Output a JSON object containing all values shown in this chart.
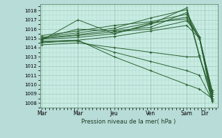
{
  "bg_color": "#b8dcd8",
  "plot_bg_color": "#c8ece4",
  "grid_color": "#98c4b0",
  "line_color": "#2a6030",
  "xlabel": "Pression niveau de la mer( hPa )",
  "ylim": [
    1007.5,
    1018.7
  ],
  "yticks": [
    1008,
    1009,
    1010,
    1011,
    1012,
    1013,
    1014,
    1015,
    1016,
    1017,
    1018
  ],
  "xtick_labels": [
    "Mar",
    "Mar",
    "Jeu",
    "Ven",
    "Sam",
    "Dir"
  ],
  "xtick_positions": [
    0.0,
    1.0,
    2.0,
    3.0,
    4.0,
    4.5
  ],
  "xlim": [
    -0.05,
    4.85
  ],
  "series": [
    [
      1014.8,
      1017.0,
      1015.5,
      1016.5,
      1018.3,
      1013.2,
      1008.2
    ],
    [
      1015.1,
      1015.6,
      1016.1,
      1017.2,
      1018.1,
      1013.0,
      1009.0
    ],
    [
      1015.3,
      1015.8,
      1016.4,
      1016.8,
      1017.6,
      1015.0,
      1008.8
    ],
    [
      1015.0,
      1016.0,
      1015.8,
      1016.2,
      1017.8,
      1015.2,
      1009.0
    ],
    [
      1014.9,
      1015.1,
      1015.5,
      1016.6,
      1017.3,
      1015.0,
      1009.2
    ],
    [
      1015.0,
      1015.3,
      1015.7,
      1016.0,
      1016.9,
      1015.1,
      1009.4
    ],
    [
      1015.0,
      1015.4,
      1015.9,
      1016.7,
      1017.1,
      1015.0,
      1008.5
    ],
    [
      1014.5,
      1014.8,
      1015.2,
      1015.8,
      1016.4,
      1015.0,
      1008.2
    ],
    [
      1014.3,
      1014.5,
      1014.0,
      1013.5,
      1013.0,
      1013.0,
      1008.5
    ],
    [
      1014.6,
      1014.7,
      1013.5,
      1012.5,
      1011.5,
      1011.0,
      1008.3
    ],
    [
      1014.7,
      1014.8,
      1013.0,
      1011.5,
      1010.0,
      1009.5,
      1008.5
    ]
  ],
  "series_x": [
    0.0,
    1.0,
    2.0,
    3.0,
    4.0,
    4.35,
    4.7
  ]
}
